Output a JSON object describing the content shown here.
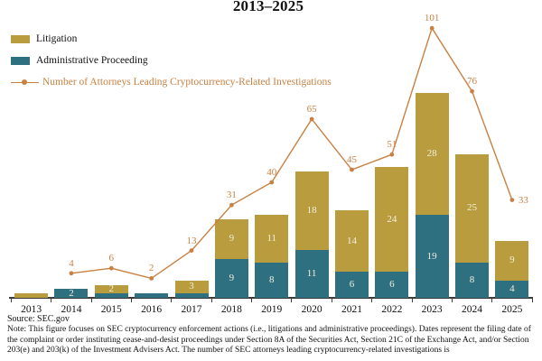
{
  "title": "2013–2025",
  "legend": {
    "litigation": "Litigation",
    "admin": "Administrative Proceeding",
    "attorneys": "Number of Attorneys Leading Cryptocurrency-Related Investigations"
  },
  "colors": {
    "litigation": "#B89C3E",
    "admin": "#2F7080",
    "line": "#C98142",
    "bar_label": "#F4EEDC",
    "axis": "#3C3C3C"
  },
  "chart_data": {
    "type": "bar",
    "subtype": "stacked-bars-with-line-overlay",
    "title": "2013–2025",
    "categories": [
      "2013",
      "2014",
      "2015",
      "2016",
      "2017",
      "2018",
      "2019",
      "2020",
      "2021",
      "2022",
      "2023",
      "2024",
      "2025"
    ],
    "series": [
      {
        "name": "Administrative Proceeding",
        "key": "admin",
        "stack_position": "bottom",
        "values": [
          0,
          2,
          1,
          1,
          1,
          9,
          8,
          11,
          6,
          6,
          19,
          8,
          4
        ]
      },
      {
        "name": "Litigation",
        "key": "litigation",
        "stack_position": "top",
        "values": [
          1,
          0,
          2,
          0,
          3,
          9,
          11,
          18,
          14,
          24,
          28,
          25,
          9
        ]
      }
    ],
    "line": {
      "name": "Number of Attorneys Leading Cryptocurrency-Related Investigations",
      "values": [
        null,
        4,
        6,
        2,
        13,
        31,
        40,
        65,
        45,
        51,
        101,
        76,
        33
      ]
    },
    "bar_label_min": 2,
    "grid": false,
    "legend_position": "top-left",
    "xlabel": "",
    "ylabel": "",
    "bar_axis_hint": "counts, unlabeled axis",
    "line_axis_hint": "attorneys, unlabeled secondary axis"
  },
  "footer": {
    "source": "Source: SEC.gov",
    "note": "Note: This figure focuses on SEC cryptocurrency enforcement actions (i.e., litigations and administrative proceedings). Dates represent the filing date of the complaint or order instituting cease-and-desist proceedings under Section 8A of the Securities Act, Section 21C of the Exchange Act, and/or Section 203(e) and 203(k) of the Investment Advisers Act. The number of SEC attorneys leading cryptocurrency-related investigations is"
  }
}
